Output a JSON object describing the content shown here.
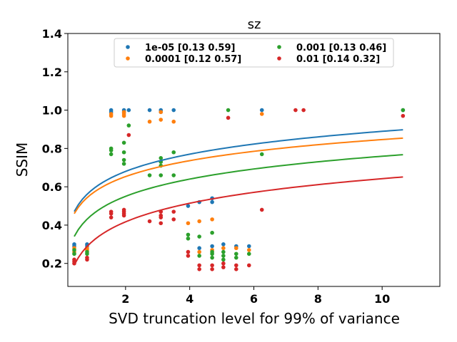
{
  "chart_data": {
    "type": "scatter",
    "title": "sz",
    "xlabel": "SVD truncation level for 99% of variance",
    "ylabel": "SSIM",
    "xlim": [
      0.2,
      11.8
    ],
    "ylim": [
      0.08,
      1.4
    ],
    "xticks": [
      2,
      4,
      6,
      8,
      10
    ],
    "yticks": [
      0.2,
      0.4,
      0.6,
      0.8,
      1.0,
      1.2,
      1.4
    ],
    "ytick_labels": [
      "0.2",
      "0.4",
      "0.6",
      "0.8",
      "1.0",
      "1.2",
      "1.4"
    ],
    "grid": false,
    "legend_position": "top-center",
    "fit_curve": "y = a + b*log(x)",
    "series": [
      {
        "name": "1e-05 [0.13 0.59]",
        "color": "#1f77b4",
        "fit": {
          "a": 0.59,
          "b": 0.13
        },
        "points": [
          [
            0.4,
            0.3
          ],
          [
            0.4,
            0.29
          ],
          [
            0.8,
            0.3
          ],
          [
            0.8,
            0.29
          ],
          [
            1.55,
            1.0
          ],
          [
            1.55,
            0.99
          ],
          [
            1.95,
            1.0
          ],
          [
            1.95,
            0.99
          ],
          [
            2.1,
            1.0
          ],
          [
            2.75,
            1.0
          ],
          [
            3.1,
            1.0
          ],
          [
            3.1,
            0.99
          ],
          [
            3.5,
            1.0
          ],
          [
            3.95,
            0.5
          ],
          [
            4.3,
            0.52
          ],
          [
            4.3,
            0.28
          ],
          [
            4.7,
            0.54
          ],
          [
            4.7,
            0.52
          ],
          [
            4.7,
            0.29
          ],
          [
            5.05,
            0.3
          ],
          [
            5.45,
            0.29
          ],
          [
            5.85,
            0.29
          ],
          [
            6.25,
            1.0
          ],
          [
            10.65,
            1.0
          ]
        ]
      },
      {
        "name": "0.0001 [0.12 0.57]",
        "color": "#ff7f0e",
        "fit": {
          "a": 0.57,
          "b": 0.12
        },
        "points": [
          [
            0.4,
            0.28
          ],
          [
            0.4,
            0.26
          ],
          [
            0.8,
            0.28
          ],
          [
            0.8,
            0.27
          ],
          [
            1.55,
            0.98
          ],
          [
            1.55,
            0.97
          ],
          [
            1.95,
            0.99
          ],
          [
            1.95,
            0.98
          ],
          [
            1.95,
            0.97
          ],
          [
            2.75,
            0.94
          ],
          [
            3.1,
            0.99
          ],
          [
            3.1,
            0.95
          ],
          [
            3.5,
            0.94
          ],
          [
            3.95,
            0.41
          ],
          [
            4.3,
            0.42
          ],
          [
            4.3,
            0.26
          ],
          [
            4.7,
            0.43
          ],
          [
            4.7,
            0.27
          ],
          [
            5.05,
            0.28
          ],
          [
            5.45,
            0.28
          ],
          [
            5.85,
            0.27
          ],
          [
            6.25,
            0.98
          ]
        ]
      },
      {
        "name": "0.001 [0.13 0.46]",
        "color": "#2ca02c",
        "fit": {
          "a": 0.46,
          "b": 0.13
        },
        "points": [
          [
            0.4,
            0.27
          ],
          [
            0.4,
            0.25
          ],
          [
            0.8,
            0.26
          ],
          [
            0.8,
            0.25
          ],
          [
            1.55,
            0.8
          ],
          [
            1.55,
            0.79
          ],
          [
            1.55,
            0.77
          ],
          [
            1.95,
            0.83
          ],
          [
            1.95,
            0.78
          ],
          [
            1.95,
            0.74
          ],
          [
            1.95,
            0.72
          ],
          [
            2.1,
            0.92
          ],
          [
            2.75,
            0.66
          ],
          [
            3.1,
            0.75
          ],
          [
            3.1,
            0.73
          ],
          [
            3.1,
            0.71
          ],
          [
            3.1,
            0.66
          ],
          [
            3.5,
            0.78
          ],
          [
            3.5,
            0.66
          ],
          [
            3.95,
            0.35
          ],
          [
            3.95,
            0.33
          ],
          [
            4.3,
            0.34
          ],
          [
            4.3,
            0.24
          ],
          [
            4.7,
            0.36
          ],
          [
            4.7,
            0.26
          ],
          [
            4.7,
            0.25
          ],
          [
            4.7,
            0.23
          ],
          [
            5.05,
            0.26
          ],
          [
            5.05,
            0.24
          ],
          [
            5.05,
            0.22
          ],
          [
            5.2,
            1.0
          ],
          [
            5.45,
            0.25
          ],
          [
            5.45,
            0.23
          ],
          [
            5.85,
            0.25
          ],
          [
            6.25,
            0.77
          ],
          [
            10.65,
            1.0
          ]
        ]
      },
      {
        "name": "0.01 [0.14 0.32]",
        "color": "#d62728",
        "fit": {
          "a": 0.32,
          "b": 0.14
        },
        "points": [
          [
            0.4,
            0.22
          ],
          [
            0.4,
            0.21
          ],
          [
            0.4,
            0.2
          ],
          [
            0.8,
            0.23
          ],
          [
            0.8,
            0.22
          ],
          [
            1.55,
            0.47
          ],
          [
            1.55,
            0.46
          ],
          [
            1.55,
            0.44
          ],
          [
            1.95,
            0.48
          ],
          [
            1.95,
            0.47
          ],
          [
            1.95,
            0.46
          ],
          [
            1.95,
            0.45
          ],
          [
            2.1,
            0.87
          ],
          [
            2.75,
            0.42
          ],
          [
            3.1,
            0.47
          ],
          [
            3.1,
            0.45
          ],
          [
            3.1,
            0.44
          ],
          [
            3.1,
            0.41
          ],
          [
            3.5,
            0.47
          ],
          [
            3.5,
            0.43
          ],
          [
            3.95,
            0.26
          ],
          [
            3.95,
            0.24
          ],
          [
            4.3,
            0.19
          ],
          [
            4.3,
            0.17
          ],
          [
            4.7,
            0.19
          ],
          [
            4.7,
            0.17
          ],
          [
            5.05,
            0.2
          ],
          [
            5.05,
            0.18
          ],
          [
            5.2,
            0.96
          ],
          [
            5.45,
            0.19
          ],
          [
            5.45,
            0.17
          ],
          [
            5.85,
            0.19
          ],
          [
            6.25,
            0.48
          ],
          [
            7.3,
            1.0
          ],
          [
            7.55,
            1.0
          ],
          [
            10.65,
            0.97
          ]
        ]
      }
    ]
  }
}
